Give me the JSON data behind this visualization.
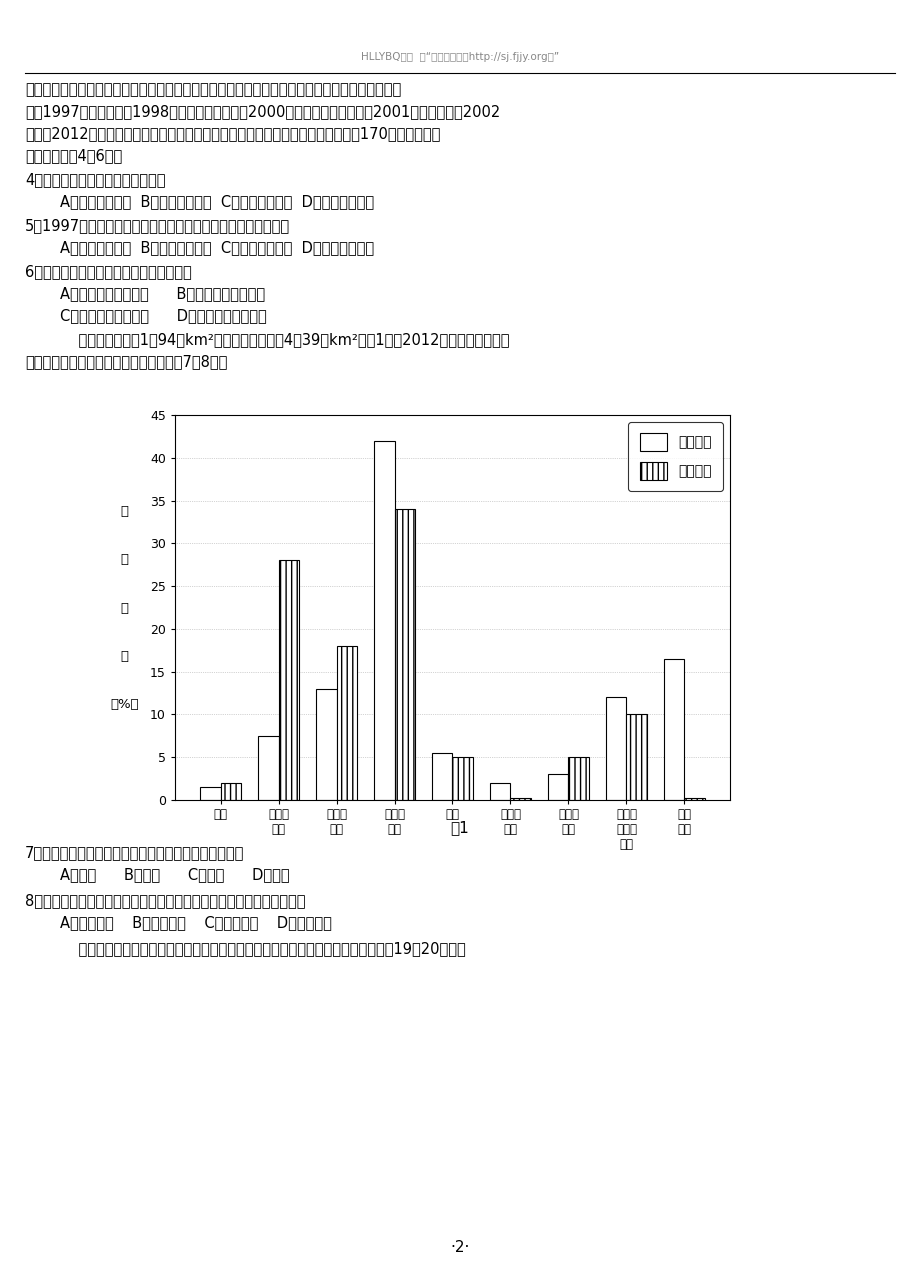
{
  "title": "图1",
  "categories": [
    "灌丛",
    "高覆盖\n草地",
    "中覆盖\n草地",
    "低覆盖\n草地",
    "水体",
    "永久性\n冰雪",
    "滩涂与\n沼泽",
    "沙地、\n戈壁与\n裸地",
    "高寒\n荒漠"
  ],
  "yangtze_values": [
    1.5,
    7.5,
    13.0,
    42.0,
    5.5,
    2.0,
    3.0,
    12.0,
    16.5
  ],
  "yellow_values": [
    2.0,
    28.0,
    18.0,
    34.0,
    5.0,
    0.2,
    5.0,
    10.0,
    0.2
  ],
  "ylim": [
    0,
    45
  ],
  "yticks": [
    0,
    5,
    10,
    15,
    20,
    25,
    30,
    35,
    40,
    45
  ],
  "legend_labels": [
    "长江源区",
    "黄河源区"
  ],
  "bar_width": 0.35,
  "background_color": "#ffffff",
  "figure_width": 9.2,
  "figure_height": 12.74,
  "dpi": 100,
  "header_text": "HLLYBQ整理  供“高中试卷网（http://sj.fjjy.org）”",
  "line1": "设备行业龙头。为谋求进一步发展，华为确立对外投资战略，在海外建立合资或独资的子公司：巴",
  "line2": "西（1997年）、印度（1998年）、中东和非洲（2000年）、东南亚和欧洲（2001年）、美国（2002",
  "line3": "年）。2012年初，华为成为全球最大的电信设备制造商；目前其产品与服务已覆盖170多个国家和地",
  "line4": "区。据此完成4～6题。",
  "q4": "4．华为确立对外投资战略的目的是",
  "q4a": "A．降低生产成本  B．发挥品牌效应  C．提高产品质量  D．拓展国际市场",
  "q5": "5．1997年，华为对外投资时不优先选择美国的原因主要是美国",
  "q5a": "A．优惠政策较少  B．技术水平较高  C．远离原料产地  D．电信设施完善",
  "q6": "6．华为在非洲建立子公司对当地的影响有",
  "q6a": "A．加剧资源供求矛盾      B．制约本土企业发展",
  "q6b": "C．增加当地就业机会      D．降低环境人口容量",
  "intro1": "    长江源区面积億1．94万km²，黄河源区面积億4．39万km²。图1示意2012年长江源区与黄河",
  "intro2": "源区土地覆被类型的面积比重。读图完成7～8题。",
  "q7": "7．长江源区与黄河源区面积相差最大的土地覆被类型是",
  "q7a": "A．草地      B．灌丛      C．湿地      D．沙地",
  "q8": "8．与长江源区相比，黄河源区缺失永久住冰雪和高寒荒漠的原因主要是",
  "q8a": "A．纬度较高    B．降水较少    C．坡度较大    D．海拔较低",
  "last": "    棕地是指废弃或半废弃的前工业和商业用地与设施。德国东北部的卢萨蒂亚地区，19～20世纪采",
  "page_num": "·2·",
  "ylabel_chars": [
    "面",
    "积",
    "比",
    "重",
    "（%）"
  ]
}
